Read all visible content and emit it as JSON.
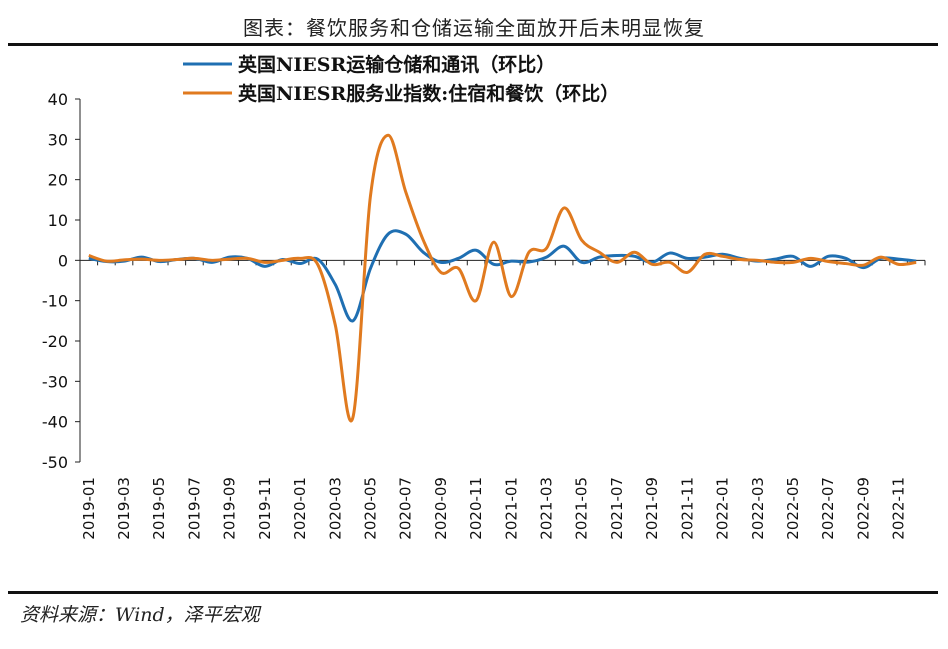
{
  "figure": {
    "title": "图表：餐饮服务和仓储运输全面放开后未明显恢复",
    "source": "资料来源：Wind，泽平宏观"
  },
  "colors": {
    "series1": "#1f6fb2",
    "series2": "#e07a1f",
    "axis": "#222222"
  },
  "chart_data": {
    "type": "line",
    "title": "",
    "xlabel": "",
    "ylabel": "",
    "ylim": [
      -50,
      40
    ],
    "yticks": [
      40,
      30,
      20,
      10,
      0,
      -10,
      -20,
      -30,
      -40,
      -50
    ],
    "grid": false,
    "legend_position": "top-left",
    "x": [
      "2019-01",
      "2019-02",
      "2019-03",
      "2019-04",
      "2019-05",
      "2019-06",
      "2019-07",
      "2019-08",
      "2019-09",
      "2019-10",
      "2019-11",
      "2019-12",
      "2020-01",
      "2020-02",
      "2020-03",
      "2020-04",
      "2020-05",
      "2020-06",
      "2020-07",
      "2020-08",
      "2020-09",
      "2020-10",
      "2020-11",
      "2020-12",
      "2021-01",
      "2021-02",
      "2021-03",
      "2021-04",
      "2021-05",
      "2021-06",
      "2021-07",
      "2021-08",
      "2021-09",
      "2021-10",
      "2021-11",
      "2021-12",
      "2022-01",
      "2022-02",
      "2022-03",
      "2022-04",
      "2022-05",
      "2022-06",
      "2022-07",
      "2022-08",
      "2022-09",
      "2022-10",
      "2022-11",
      "2022-12"
    ],
    "xtick_labels": [
      "2019-01",
      "2019-03",
      "2019-05",
      "2019-07",
      "2019-09",
      "2019-11",
      "2020-01",
      "2020-03",
      "2020-05",
      "2020-07",
      "2020-09",
      "2020-11",
      "2021-01",
      "2021-03",
      "2021-05",
      "2021-07",
      "2021-09",
      "2021-11",
      "2022-01",
      "2022-03",
      "2022-05",
      "2022-07",
      "2022-09",
      "2022-11"
    ],
    "series": [
      {
        "name": "英国NIESR运输仓储和通讯（环比）",
        "values": [
          0.5,
          -0.3,
          -0.2,
          0.8,
          -0.3,
          0.2,
          0.5,
          -0.5,
          0.8,
          0.5,
          -1.5,
          0.2,
          -0.8,
          0.3,
          -6,
          -15,
          -2,
          6.5,
          6.5,
          2,
          -0.5,
          0.5,
          2.5,
          -1,
          -0.2,
          -0.4,
          0.8,
          3.5,
          -0.5,
          0.8,
          1.2,
          1,
          -0.5,
          1.8,
          0.5,
          0.8,
          1.5,
          0.5,
          -0.2,
          0.3,
          1,
          -1.5,
          1,
          0.5,
          -1.8,
          0.5,
          0.3,
          -0.2
        ]
      },
      {
        "name": "英国NIESR服务业指数:住宿和餐饮（环比）",
        "values": [
          1.2,
          -0.2,
          0.1,
          0.3,
          0,
          0.2,
          0.5,
          0,
          0.3,
          0.5,
          -0.5,
          0,
          0.5,
          -1,
          -16,
          -39,
          16,
          31,
          17,
          5,
          -3,
          -2,
          -10,
          4.5,
          -9,
          2,
          3,
          13,
          5,
          2,
          -0.5,
          2,
          -1,
          -0.5,
          -3,
          1.5,
          1,
          0.2,
          0,
          -0.5,
          -0.5,
          0.5,
          -0.3,
          -0.8,
          -1.2,
          0.8,
          -1,
          -0.5
        ]
      }
    ]
  }
}
